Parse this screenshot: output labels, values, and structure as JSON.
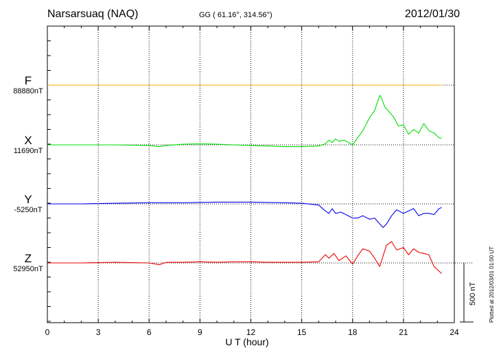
{
  "header": {
    "station": "Narsarsuaq (NAQ)",
    "coordinates": "GG ( 61.16°, 314.56°)",
    "date": "2012/01/30"
  },
  "plotted_note": "Plotted at 2012/03/01 01:00 UT",
  "scale_label": "500 nT",
  "chart_data": {
    "type": "line",
    "xlabel": "U T (hour)",
    "xlim": [
      0,
      24
    ],
    "xticks": [
      "0",
      "3",
      "6",
      "9",
      "12",
      "15",
      "18",
      "21",
      "24"
    ],
    "grid": true,
    "scale_bar_nT": 500,
    "series": [
      {
        "name": "F",
        "baseline_label": "88880nT",
        "color": "#f5a800",
        "x": [
          0,
          23.25
        ],
        "y": [
          0,
          0
        ]
      },
      {
        "name": "X",
        "baseline_label": "11690nT",
        "color": "#00dd00",
        "x": [
          0,
          2,
          4,
          6,
          6.6,
          7,
          8,
          9,
          10,
          11,
          12,
          13,
          14,
          15,
          16,
          16.4,
          16.6,
          16.8,
          17,
          17.2,
          17.5,
          18,
          18.3,
          18.6,
          19,
          19.3,
          19.6,
          19.7,
          19.9,
          20.1,
          20.4,
          20.7,
          21,
          21.3,
          21.6,
          21.9,
          22.2,
          22.5,
          22.8,
          23.1,
          23.25
        ],
        "y": [
          0,
          0,
          0,
          -5,
          -15,
          -5,
          5,
          8,
          5,
          0,
          -5,
          -10,
          -15,
          -15,
          -10,
          10,
          40,
          20,
          50,
          30,
          40,
          0,
          60,
          120,
          230,
          290,
          420,
          400,
          320,
          290,
          240,
          160,
          170,
          90,
          130,
          100,
          180,
          120,
          100,
          60,
          55
        ]
      },
      {
        "name": "Y",
        "baseline_label": "-5250nT",
        "color": "#0000ee",
        "x": [
          0,
          2,
          4,
          6,
          8,
          10,
          12,
          14,
          15,
          16,
          16.4,
          16.6,
          16.8,
          17,
          17.3,
          17.6,
          18,
          18.3,
          18.6,
          19,
          19.3,
          19.6,
          19.8,
          20,
          20.3,
          20.6,
          21,
          21.3,
          21.6,
          21.9,
          22.2,
          22.5,
          22.8,
          23.1,
          23.25
        ],
        "y": [
          0,
          0,
          5,
          10,
          10,
          15,
          15,
          10,
          5,
          -10,
          -60,
          -80,
          -40,
          -80,
          -70,
          -90,
          -120,
          -120,
          -100,
          -130,
          -120,
          -170,
          -200,
          -170,
          -100,
          -50,
          -80,
          -60,
          -40,
          -100,
          -80,
          -80,
          -90,
          -40,
          -30
        ]
      },
      {
        "name": "Z",
        "baseline_label": "52950nT",
        "color": "#ee0000",
        "x": [
          0,
          2,
          4,
          6,
          6.6,
          7,
          8,
          9,
          10,
          11,
          12,
          13,
          14,
          15,
          16,
          16.4,
          16.6,
          16.9,
          17.2,
          17.6,
          18,
          18.3,
          18.6,
          19,
          19.3,
          19.6,
          19.8,
          20,
          20.3,
          20.6,
          21,
          21.3,
          21.6,
          21.9,
          22.2,
          22.5,
          22.8,
          23.1,
          23.25
        ],
        "y": [
          0,
          0,
          5,
          0,
          -15,
          5,
          5,
          10,
          5,
          10,
          10,
          5,
          5,
          5,
          10,
          70,
          40,
          80,
          20,
          60,
          -10,
          60,
          120,
          100,
          40,
          -30,
          60,
          150,
          180,
          110,
          130,
          70,
          120,
          90,
          80,
          70,
          -30,
          -70,
          -90
        ]
      }
    ]
  }
}
